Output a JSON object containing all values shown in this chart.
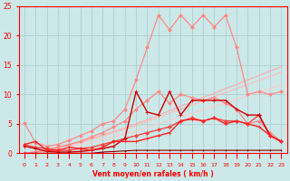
{
  "xlabel": "Vent moyen/en rafales ( km/h )",
  "x": [
    0,
    1,
    2,
    3,
    4,
    5,
    6,
    7,
    8,
    9,
    10,
    11,
    12,
    13,
    14,
    15,
    16,
    17,
    18,
    19,
    20,
    21,
    22,
    23
  ],
  "series": [
    {
      "color": "#ffaaaa",
      "linewidth": 0.8,
      "marker": null,
      "markersize": 0,
      "values": [
        0.0,
        0.3,
        0.7,
        1.1,
        1.5,
        2.0,
        2.5,
        3.1,
        3.7,
        4.3,
        5.0,
        5.7,
        6.5,
        7.2,
        8.0,
        8.7,
        9.5,
        10.2,
        11.0,
        11.7,
        12.5,
        13.2,
        14.0,
        14.7
      ]
    },
    {
      "color": "#ffbbbb",
      "linewidth": 0.8,
      "marker": null,
      "markersize": 0,
      "values": [
        0.0,
        0.2,
        0.5,
        0.9,
        1.3,
        1.8,
        2.3,
        2.9,
        3.5,
        4.1,
        4.7,
        5.4,
        6.1,
        6.8,
        7.5,
        8.2,
        8.9,
        9.6,
        10.3,
        11.0,
        11.7,
        12.4,
        13.1,
        13.8
      ]
    },
    {
      "color": "#ffcccc",
      "linewidth": 0.8,
      "marker": null,
      "markersize": 0,
      "values": [
        0.0,
        0.2,
        0.4,
        0.7,
        1.0,
        1.4,
        1.8,
        2.3,
        2.8,
        3.3,
        3.8,
        4.4,
        5.0,
        5.6,
        6.2,
        6.8,
        7.4,
        8.0,
        8.6,
        9.2,
        9.8,
        10.4,
        11.0,
        11.6
      ]
    },
    {
      "color": "#ff8888",
      "linewidth": 0.9,
      "marker": "D",
      "markersize": 2,
      "values": [
        5.2,
        1.8,
        1.2,
        1.5,
        2.2,
        3.0,
        3.8,
        5.0,
        5.5,
        7.5,
        12.5,
        18.0,
        23.5,
        21.0,
        23.5,
        21.5,
        23.5,
        21.5,
        23.5,
        18.0,
        10.0,
        10.5,
        10.0,
        10.5
      ]
    },
    {
      "color": "#ff8888",
      "linewidth": 0.9,
      "marker": "D",
      "markersize": 2,
      "values": [
        0.0,
        0.2,
        0.5,
        1.0,
        1.5,
        2.0,
        2.8,
        3.5,
        4.5,
        5.5,
        7.5,
        9.0,
        10.5,
        8.5,
        10.0,
        9.5,
        9.0,
        9.5,
        8.5,
        7.5,
        5.0,
        5.5,
        3.5,
        2.0
      ]
    },
    {
      "color": "#ff4444",
      "linewidth": 1.0,
      "marker": "D",
      "markersize": 2,
      "values": [
        1.5,
        1.0,
        0.8,
        0.5,
        0.5,
        0.8,
        1.0,
        1.5,
        2.0,
        2.5,
        3.0,
        3.5,
        4.0,
        4.5,
        5.5,
        6.0,
        5.5,
        6.0,
        5.5,
        5.5,
        5.0,
        6.5,
        3.0,
        2.0
      ]
    },
    {
      "color": "#cc0000",
      "linewidth": 1.0,
      "marker": "+",
      "markersize": 3,
      "values": [
        1.2,
        0.8,
        0.3,
        0.2,
        0.2,
        0.3,
        0.5,
        0.8,
        1.2,
        2.5,
        10.5,
        7.0,
        6.5,
        10.5,
        6.5,
        9.0,
        9.0,
        9.0,
        9.0,
        7.5,
        6.5,
        6.5,
        3.0,
        2.0
      ]
    },
    {
      "color": "#ff2222",
      "linewidth": 1.0,
      "marker": "+",
      "markersize": 3,
      "values": [
        1.5,
        2.0,
        0.5,
        0.5,
        1.0,
        0.8,
        0.5,
        1.0,
        2.0,
        2.0,
        2.0,
        2.5,
        3.0,
        3.5,
        5.5,
        5.8,
        5.5,
        6.0,
        5.0,
        5.5,
        5.0,
        4.5,
        3.0,
        2.0
      ]
    },
    {
      "color": "#880000",
      "linewidth": 0.8,
      "marker": "+",
      "markersize": 2,
      "values": [
        0.0,
        0.0,
        0.0,
        0.0,
        0.0,
        0.0,
        0.0,
        0.2,
        0.3,
        0.4,
        0.5,
        0.5,
        0.5,
        0.5,
        0.5,
        0.5,
        0.5,
        0.5,
        0.5,
        0.5,
        0.5,
        0.5,
        0.5,
        0.5
      ]
    }
  ],
  "ylim": [
    0,
    25
  ],
  "xlim": [
    -0.5,
    23.5
  ],
  "yticks": [
    0,
    5,
    10,
    15,
    20,
    25
  ],
  "xticks": [
    0,
    1,
    2,
    3,
    4,
    5,
    6,
    7,
    8,
    9,
    10,
    11,
    12,
    13,
    14,
    15,
    16,
    17,
    18,
    19,
    20,
    21,
    22,
    23
  ],
  "bg_color": "#cce8e8",
  "grid_color": "#aacccc",
  "axis_color": "#ff0000",
  "tick_label_color": "#ff0000",
  "xlabel_color": "#ff0000"
}
